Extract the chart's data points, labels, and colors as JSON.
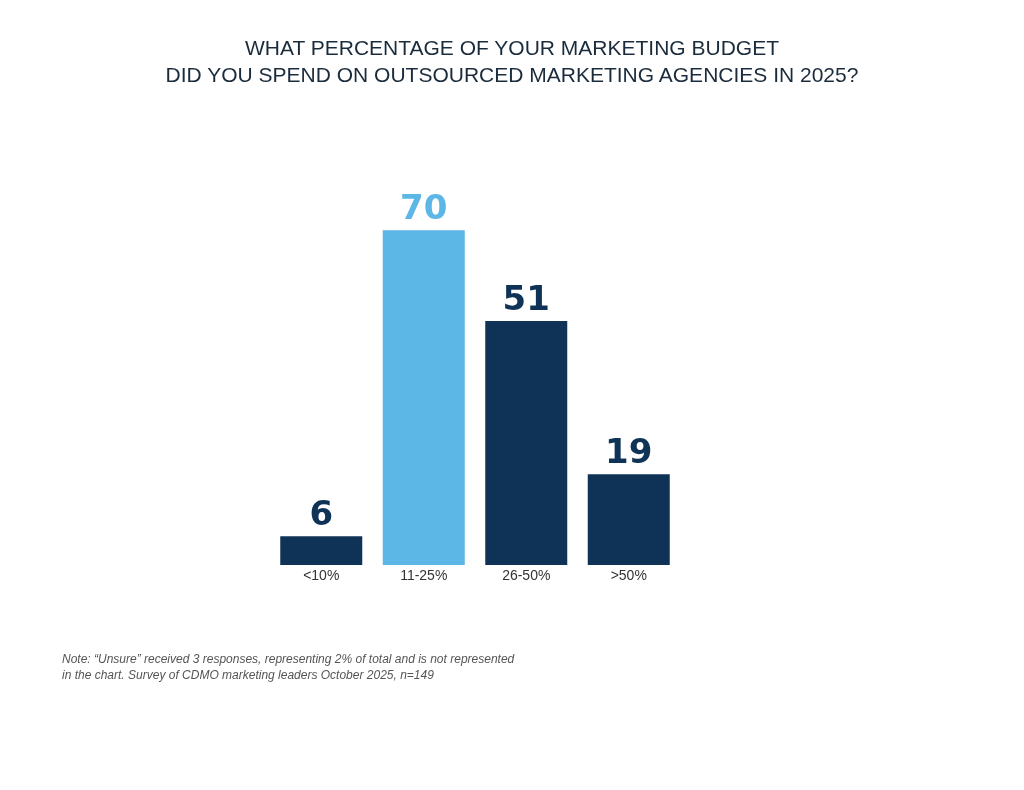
{
  "chart_data": {
    "type": "bar",
    "title": "WHAT PERCENTAGE OF YOUR MARKETING BUDGET\nDID YOU SPEND ON OUTSOURCED MARKETING AGENCIES IN 2025?",
    "categories": [
      "<10%",
      "11-25%",
      "26-50%",
      ">50%"
    ],
    "values": [
      6,
      70,
      51,
      19
    ],
    "colors": [
      "#0f3357",
      "#5cb6e6",
      "#0f3357",
      "#0f3357"
    ],
    "data_labels": true,
    "annotations": [
      "Note: “Unsure” received 3 responses, representing 2% of total and is not represented\nin the chart. Survey of CDMO marketing leaders October 2025, n=149"
    ]
  }
}
